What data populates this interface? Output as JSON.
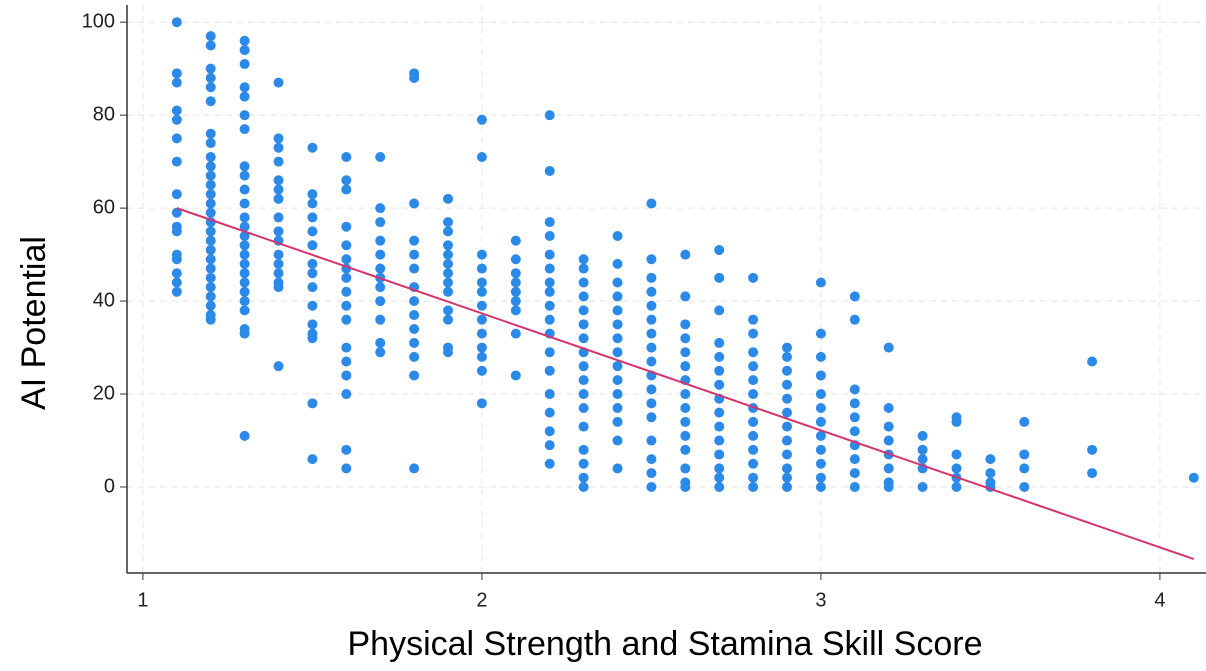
{
  "chart_data": {
    "type": "scatter",
    "x_label": "Physical Strength and Stamina Skill Score",
    "y_label": "AI Potential",
    "xlim": [
      0.953,
      4.136
    ],
    "ylim": [
      -18.5,
      103.7
    ],
    "xticks": [
      1,
      2,
      3,
      4
    ],
    "yticks": [
      0,
      20,
      40,
      60,
      80,
      100
    ],
    "grid": true,
    "series": [
      {
        "color": "#2b8ae8",
        "x": [
          1.1,
          1.1,
          1.1,
          1.1,
          1.1,
          1.1,
          1.1,
          1.1,
          1.1,
          1.1,
          1.1,
          1.1,
          1.1,
          1.1,
          1.1,
          1.1,
          1.2,
          1.2,
          1.2,
          1.2,
          1.2,
          1.2,
          1.2,
          1.2,
          1.2,
          1.2,
          1.2,
          1.2,
          1.2,
          1.2,
          1.2,
          1.2,
          1.2,
          1.2,
          1.2,
          1.2,
          1.2,
          1.2,
          1.2,
          1.2,
          1.2,
          1.2,
          1.2,
          1.3,
          1.3,
          1.3,
          1.3,
          1.3,
          1.3,
          1.3,
          1.3,
          1.3,
          1.3,
          1.3,
          1.3,
          1.3,
          1.3,
          1.3,
          1.3,
          1.3,
          1.3,
          1.3,
          1.3,
          1.3,
          1.3,
          1.3,
          1.3,
          1.3,
          1.4,
          1.4,
          1.4,
          1.4,
          1.4,
          1.4,
          1.4,
          1.4,
          1.4,
          1.4,
          1.4,
          1.4,
          1.4,
          1.4,
          1.4,
          1.4,
          1.5,
          1.5,
          1.5,
          1.5,
          1.5,
          1.5,
          1.5,
          1.5,
          1.5,
          1.5,
          1.5,
          1.5,
          1.5,
          1.5,
          1.5,
          1.6,
          1.6,
          1.6,
          1.6,
          1.6,
          1.6,
          1.6,
          1.6,
          1.6,
          1.6,
          1.6,
          1.6,
          1.6,
          1.6,
          1.6,
          1.6,
          1.6,
          1.7,
          1.7,
          1.7,
          1.7,
          1.7,
          1.7,
          1.7,
          1.7,
          1.7,
          1.7,
          1.7,
          1.7,
          1.8,
          1.8,
          1.8,
          1.8,
          1.8,
          1.8,
          1.8,
          1.8,
          1.8,
          1.8,
          1.8,
          1.8,
          1.8,
          1.8,
          1.9,
          1.9,
          1.9,
          1.9,
          1.9,
          1.9,
          1.9,
          1.9,
          1.9,
          1.9,
          1.9,
          1.9,
          1.9,
          2.0,
          2.0,
          2.0,
          2.0,
          2.0,
          2.0,
          2.0,
          2.0,
          2.0,
          2.0,
          2.0,
          2.0,
          2.0,
          2.1,
          2.1,
          2.1,
          2.1,
          2.1,
          2.1,
          2.1,
          2.1,
          2.1,
          2.2,
          2.2,
          2.2,
          2.2,
          2.2,
          2.2,
          2.2,
          2.2,
          2.2,
          2.2,
          2.2,
          2.2,
          2.2,
          2.2,
          2.2,
          2.2,
          2.2,
          2.2,
          2.3,
          2.3,
          2.3,
          2.3,
          2.3,
          2.3,
          2.3,
          2.3,
          2.3,
          2.3,
          2.3,
          2.3,
          2.3,
          2.3,
          2.3,
          2.3,
          2.3,
          2.4,
          2.4,
          2.4,
          2.4,
          2.4,
          2.4,
          2.4,
          2.4,
          2.4,
          2.4,
          2.4,
          2.4,
          2.4,
          2.4,
          2.4,
          2.5,
          2.5,
          2.5,
          2.5,
          2.5,
          2.5,
          2.5,
          2.5,
          2.5,
          2.5,
          2.5,
          2.5,
          2.5,
          2.5,
          2.5,
          2.5,
          2.5,
          2.6,
          2.6,
          2.6,
          2.6,
          2.6,
          2.6,
          2.6,
          2.6,
          2.6,
          2.6,
          2.6,
          2.6,
          2.6,
          2.6,
          2.6,
          2.7,
          2.7,
          2.7,
          2.7,
          2.7,
          2.7,
          2.7,
          2.7,
          2.7,
          2.7,
          2.7,
          2.7,
          2.7,
          2.7,
          2.7,
          2.8,
          2.8,
          2.8,
          2.8,
          2.8,
          2.8,
          2.8,
          2.8,
          2.8,
          2.8,
          2.8,
          2.8,
          2.8,
          2.8,
          2.9,
          2.9,
          2.9,
          2.9,
          2.9,
          2.9,
          2.9,
          2.9,
          2.9,
          2.9,
          2.9,
          2.9,
          3.0,
          3.0,
          3.0,
          3.0,
          3.0,
          3.0,
          3.0,
          3.0,
          3.0,
          3.0,
          3.0,
          3.0,
          3.1,
          3.1,
          3.1,
          3.1,
          3.1,
          3.1,
          3.1,
          3.1,
          3.1,
          3.1,
          3.2,
          3.2,
          3.2,
          3.2,
          3.2,
          3.2,
          3.2,
          3.2,
          3.3,
          3.3,
          3.3,
          3.3,
          3.3,
          3.4,
          3.4,
          3.4,
          3.4,
          3.4,
          3.4,
          3.5,
          3.5,
          3.5,
          3.5,
          3.6,
          3.6,
          3.6,
          3.6,
          3.8,
          3.8,
          3.8,
          4.1
        ],
        "values": [
          100,
          89,
          87,
          81,
          79,
          75,
          70,
          63,
          59,
          56,
          55,
          50,
          49,
          46,
          44,
          42,
          97,
          95,
          90,
          88,
          86,
          83,
          76,
          74,
          71,
          69,
          67,
          65,
          63,
          61,
          59,
          57,
          55,
          53,
          51,
          49,
          47,
          45,
          43,
          41,
          39,
          37,
          36,
          96,
          94,
          91,
          86,
          84,
          80,
          77,
          69,
          67,
          64,
          61,
          58,
          56,
          54,
          52,
          50,
          48,
          46,
          44,
          42,
          40,
          38,
          34,
          33,
          11,
          87,
          75,
          73,
          70,
          66,
          64,
          62,
          58,
          55,
          53,
          50,
          48,
          46,
          44,
          43,
          26,
          73,
          63,
          61,
          58,
          55,
          52,
          48,
          46,
          43,
          39,
          35,
          33,
          32,
          18,
          6,
          71,
          66,
          64,
          56,
          52,
          49,
          47,
          45,
          42,
          39,
          36,
          30,
          27,
          24,
          20,
          8,
          4,
          71,
          60,
          57,
          53,
          50,
          47,
          45,
          43,
          40,
          36,
          31,
          29,
          89,
          88,
          61,
          53,
          50,
          47,
          43,
          40,
          37,
          34,
          31,
          28,
          24,
          4,
          62,
          57,
          55,
          52,
          50,
          48,
          46,
          44,
          42,
          38,
          36,
          30,
          29,
          79,
          71,
          50,
          47,
          44,
          42,
          39,
          36,
          33,
          30,
          28,
          25,
          18,
          53,
          49,
          46,
          44,
          42,
          40,
          38,
          33,
          24,
          80,
          68,
          57,
          54,
          50,
          47,
          44,
          42,
          39,
          36,
          33,
          29,
          25,
          20,
          16,
          12,
          9,
          5,
          49,
          47,
          44,
          41,
          38,
          35,
          32,
          29,
          26,
          23,
          20,
          17,
          13,
          8,
          5,
          2,
          0,
          54,
          48,
          44,
          41,
          38,
          35,
          32,
          29,
          26,
          23,
          20,
          17,
          14,
          10,
          4,
          61,
          49,
          45,
          42,
          39,
          36,
          33,
          30,
          27,
          24,
          21,
          18,
          15,
          10,
          6,
          3,
          0,
          50,
          41,
          35,
          32,
          29,
          26,
          23,
          20,
          17,
          14,
          11,
          8,
          4,
          1,
          0,
          51,
          45,
          38,
          31,
          28,
          25,
          22,
          19,
          16,
          13,
          10,
          7,
          4,
          2,
          0,
          45,
          36,
          33,
          29,
          26,
          23,
          20,
          17,
          14,
          11,
          8,
          5,
          2,
          0,
          30,
          28,
          25,
          22,
          19,
          16,
          13,
          10,
          7,
          4,
          2,
          0,
          44,
          33,
          28,
          24,
          20,
          17,
          14,
          11,
          8,
          5,
          2,
          0,
          41,
          36,
          21,
          18,
          15,
          12,
          9,
          6,
          3,
          0,
          30,
          17,
          13,
          10,
          7,
          4,
          1,
          0,
          11,
          8,
          6,
          4,
          0,
          15,
          14,
          7,
          4,
          2,
          0,
          6,
          3,
          1,
          0,
          14,
          7,
          4,
          0,
          27,
          8,
          3,
          2
        ]
      },
      {
        "type": "line",
        "color": "#d6336c",
        "x": [
          1.1,
          4.1
        ],
        "values": [
          60,
          -15.5
        ]
      }
    ]
  }
}
